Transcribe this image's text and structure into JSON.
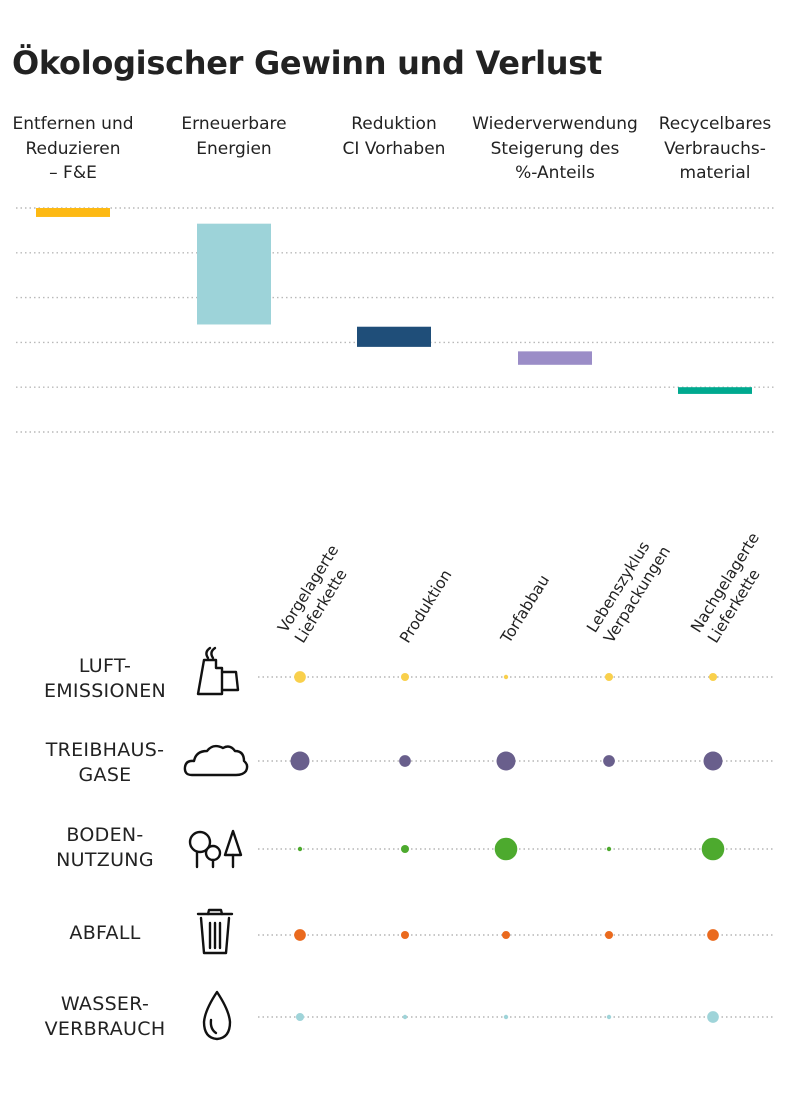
{
  "title": "Ökologischer Gewinn und Verlust",
  "chart_data": [
    {
      "type": "waterfall",
      "title": "Ökologischer Gewinn und Verlust",
      "ylim": [
        0,
        100
      ],
      "grid": true,
      "ylabel": "",
      "categories": [
        {
          "lines": [
            "Entfernen und",
            "Reduzieren",
            "– F&E"
          ],
          "start": 100,
          "end": 96,
          "color": "#FDB913"
        },
        {
          "lines": [
            "Erneuerbare",
            "Energien"
          ],
          "start": 93,
          "end": 48,
          "color": "#9DD3D9"
        },
        {
          "lines": [
            "Reduktion",
            "CI Vorhaben"
          ],
          "start": 47,
          "end": 38,
          "color": "#1F4E79"
        },
        {
          "lines": [
            "Wiederverwendung",
            "Steigerung des",
            "%-Anteils"
          ],
          "start": 36,
          "end": 30,
          "color": "#9B8DC7"
        },
        {
          "lines": [
            "Recycelbares",
            "Verbrauchs-",
            "material"
          ],
          "start": 20,
          "end": 17,
          "color": "#00A98F"
        }
      ]
    },
    {
      "type": "bubble-matrix",
      "columns": [
        [
          "Vorgelagerte",
          "Lieferkette"
        ],
        [
          "Produktion"
        ],
        [
          "Torfabbau"
        ],
        [
          "Lebenszyklus",
          "Verpackungen"
        ],
        [
          "Nachgelagerte",
          "Lieferkette"
        ]
      ],
      "rows": [
        {
          "lines": [
            "LUFT-",
            "EMISSIONEN"
          ],
          "icon": "kiln-icon",
          "color": "#F9D04C",
          "values": [
            3,
            2,
            1,
            2,
            2
          ]
        },
        {
          "lines": [
            "TREIBHAUS-",
            "GASE"
          ],
          "icon": "cloud-icon",
          "color": "#695F8C",
          "values": [
            5,
            3,
            5,
            3,
            5
          ]
        },
        {
          "lines": [
            "BODEN-",
            "NUTZUNG"
          ],
          "icon": "trees-icon",
          "color": "#4DAA2E",
          "values": [
            1,
            2,
            6,
            1,
            6
          ]
        },
        {
          "lines": [
            "ABFALL"
          ],
          "icon": "trash-icon",
          "color": "#EA6A1E",
          "values": [
            3,
            2,
            2,
            2,
            3
          ]
        },
        {
          "lines": [
            "WASSER-",
            "VERBRAUCH"
          ],
          "icon": "drop-icon",
          "color": "#9FD4D9",
          "values": [
            2,
            1,
            1,
            1,
            3
          ]
        }
      ]
    }
  ]
}
